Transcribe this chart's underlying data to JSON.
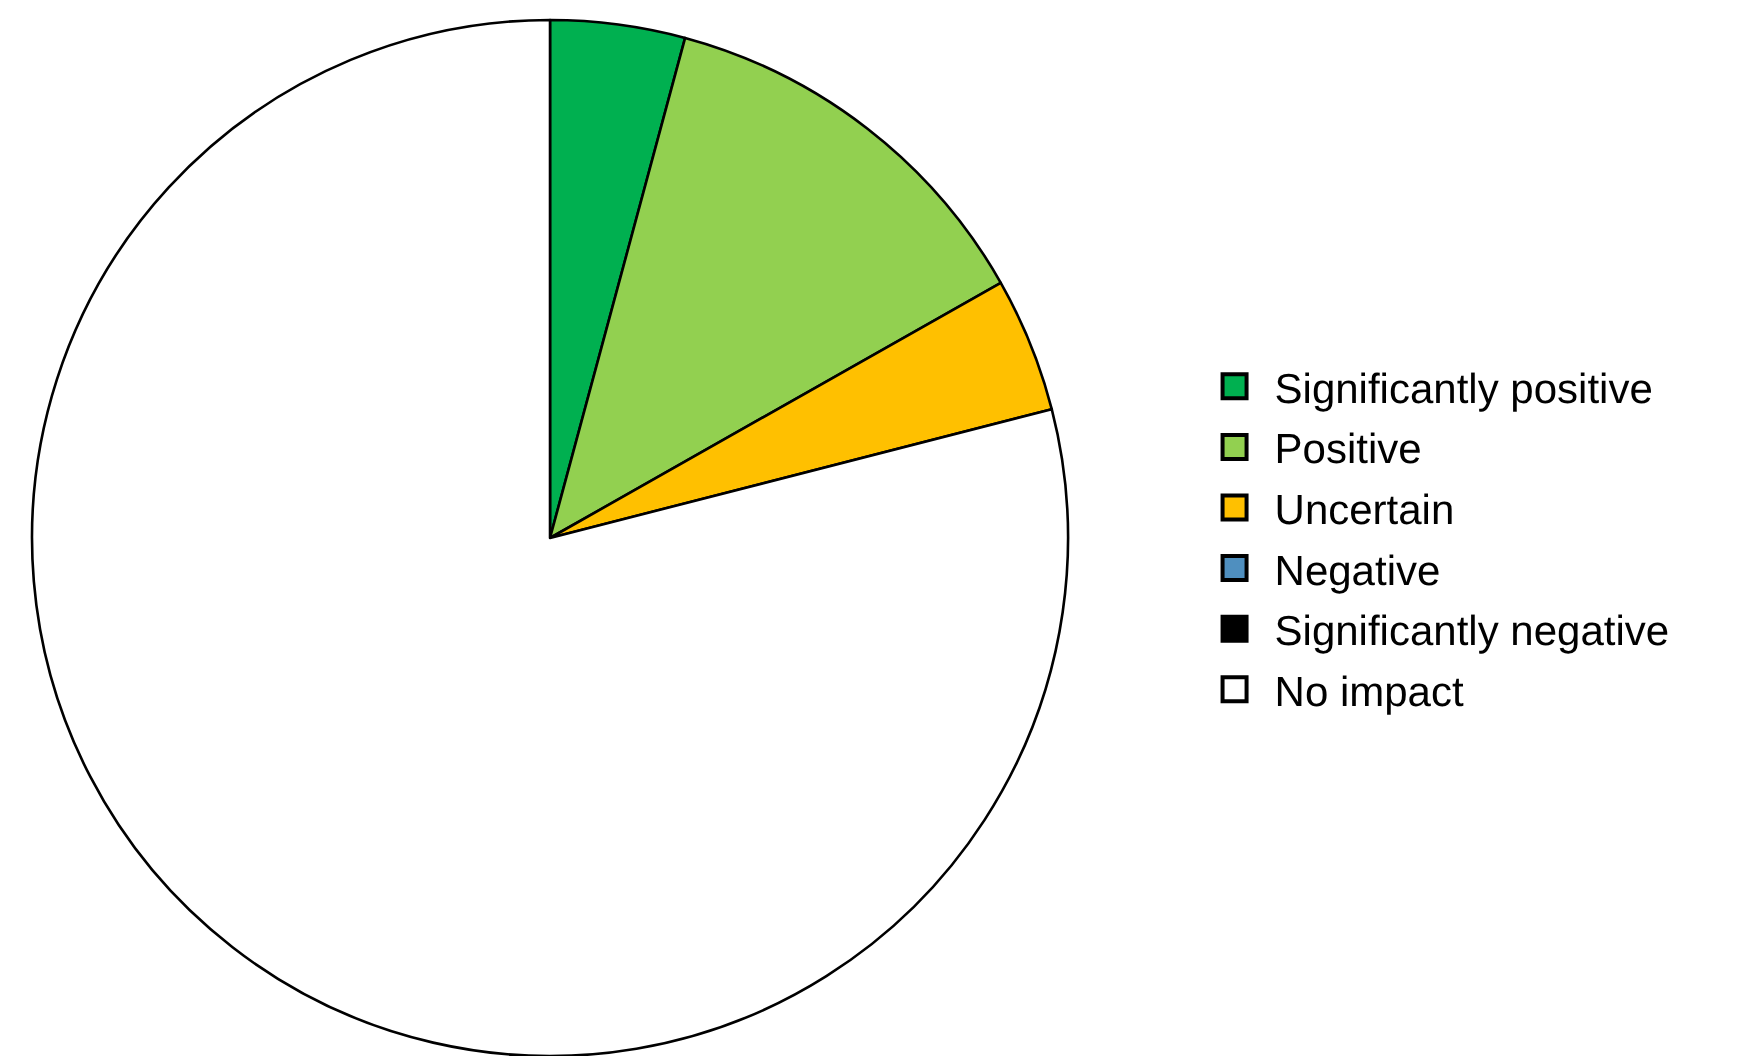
{
  "chart_data": {
    "type": "pie",
    "categories": [
      "Significantly positive",
      "Positive",
      "Uncertain",
      "Negative",
      "Significantly negative",
      "No impact"
    ],
    "values": [
      4.2,
      12.6,
      4.2,
      0,
      0,
      79.0
    ],
    "colors": [
      "#00b050",
      "#92d050",
      "#ffc000",
      "#4f8fbf",
      "#000000",
      "#ffffff"
    ],
    "legend": "right"
  }
}
